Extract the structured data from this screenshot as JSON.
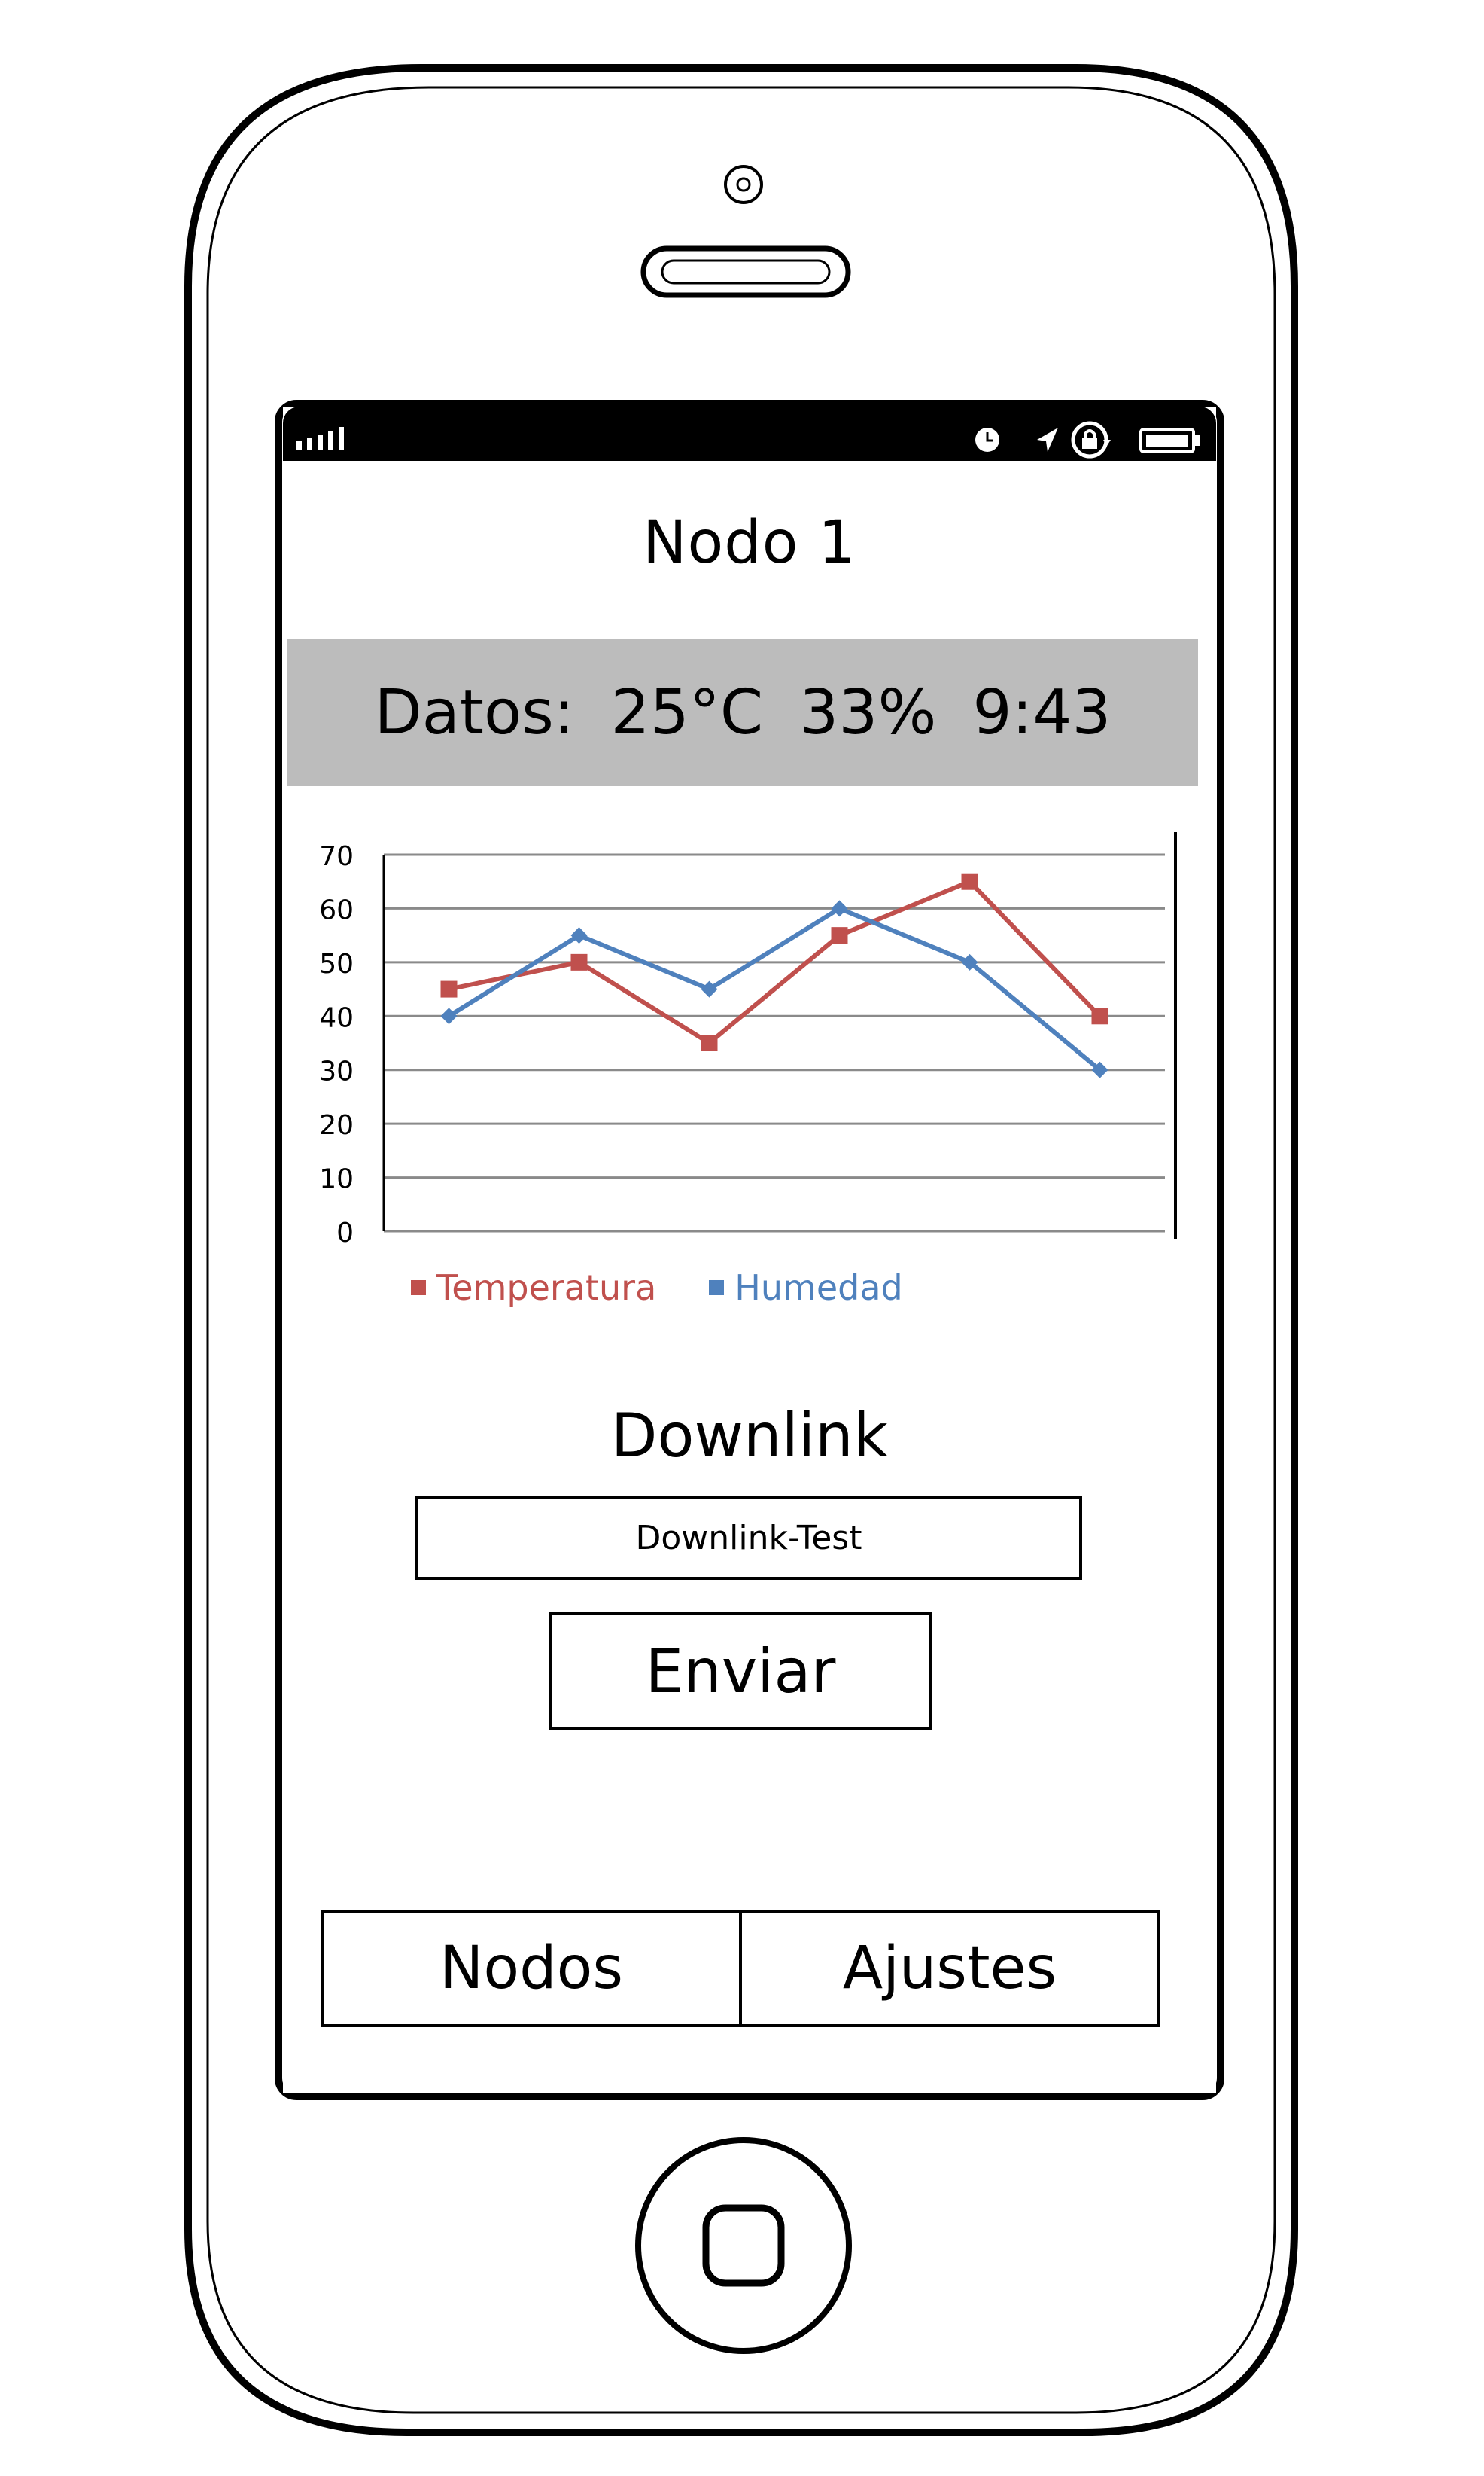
{
  "screen": {
    "title": "Nodo 1",
    "datos": {
      "label": "Datos:",
      "temperature": "25°C",
      "humidity": "33%",
      "time": "9:43"
    },
    "downlink": {
      "label": "Downlink",
      "input_value": "Downlink-Test",
      "send_label": "Enviar"
    },
    "tabs": [
      {
        "label": "Nodos"
      },
      {
        "label": "Ajustes"
      }
    ]
  },
  "status_icons": [
    "signal-icon",
    "clock-icon",
    "location-arrow-icon",
    "rotation-lock-icon",
    "battery-icon"
  ],
  "colors": {
    "temperature": "#c0504d",
    "humidity": "#4f81bd",
    "datos_bg": "#bcbcbc"
  },
  "chart_data": {
    "type": "line",
    "x": [
      1,
      2,
      3,
      4,
      5,
      6
    ],
    "ylim": [
      0,
      70
    ],
    "yticks": [
      "0",
      "10",
      "20",
      "30",
      "40",
      "50",
      "60",
      "70"
    ],
    "series": [
      {
        "name": "Temperatura",
        "values": [
          45,
          50,
          35,
          55,
          65,
          40
        ],
        "marker": "square"
      },
      {
        "name": "Humedad",
        "values": [
          40,
          55,
          45,
          60,
          50,
          30
        ],
        "marker": "diamond"
      }
    ],
    "grid": true,
    "legend": "bottom-left"
  }
}
